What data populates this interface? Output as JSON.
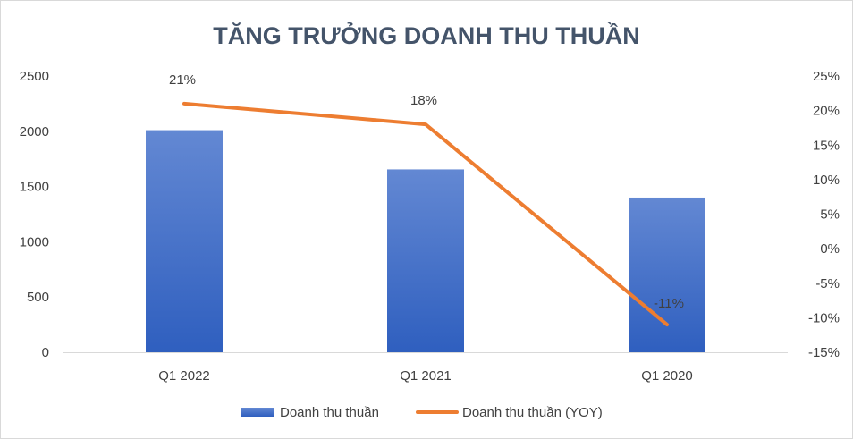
{
  "chart_data": {
    "type": "bar",
    "title": "TĂNG TRƯỞNG DOANH THU THUẦN",
    "categories": [
      "Q1 2022",
      "Q1 2021",
      "Q1 2020"
    ],
    "series": [
      {
        "name": "Doanh thu thuần",
        "type": "bar",
        "axis": "left",
        "values": [
          2010,
          1655,
          1400
        ],
        "color": "#4472c4"
      },
      {
        "name": "Doanh thu thuần (YOY)",
        "type": "line",
        "axis": "right",
        "values": [
          21,
          18,
          -11
        ],
        "data_labels": [
          "21%",
          "18%",
          "-11%"
        ],
        "color": "#ed7d31"
      }
    ],
    "y_left": {
      "min": 0,
      "max": 2500,
      "step": 500,
      "ticks": [
        "0",
        "500",
        "1000",
        "1500",
        "2000",
        "2500"
      ]
    },
    "y_right": {
      "min": -15,
      "max": 25,
      "step": 5,
      "ticks": [
        "-15%",
        "-10%",
        "-5%",
        "0%",
        "5%",
        "10%",
        "15%",
        "20%",
        "25%"
      ]
    },
    "grid": false,
    "legend_position": "bottom"
  }
}
